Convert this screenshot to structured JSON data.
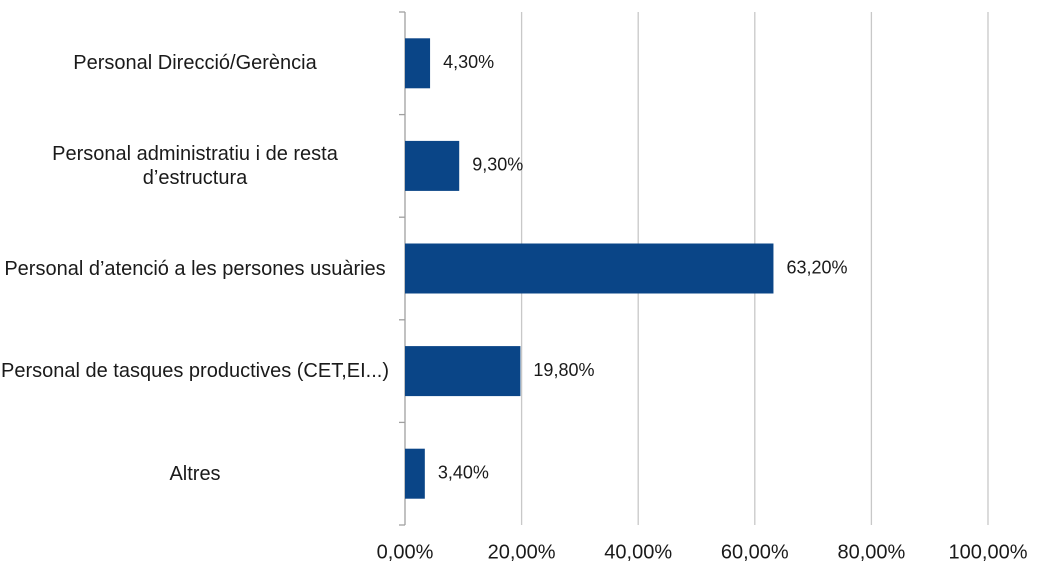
{
  "chart_data": {
    "type": "bar",
    "orientation": "horizontal",
    "categories": [
      "Personal Direcció/Gerència",
      "Personal administratiu i de resta d’estructura",
      "Personal d’atenció a les persones usuàries",
      "Personal de tasques productives (CET,EI...)",
      "Altres"
    ],
    "values": [
      4.3,
      9.3,
      63.2,
      19.8,
      3.4
    ],
    "value_labels": [
      "4,30%",
      "9,30%",
      "63,20%",
      "19,80%",
      "3,40%"
    ],
    "color": "#0a4587",
    "xlim": [
      0,
      100
    ],
    "xticks": [
      {
        "value": 0,
        "label": "0,00%"
      },
      {
        "value": 20,
        "label": "20,00%"
      },
      {
        "value": 40,
        "label": "40,00%"
      },
      {
        "value": 60,
        "label": "60,00%"
      },
      {
        "value": 80,
        "label": "80,00%"
      },
      {
        "value": 100,
        "label": "100,00%"
      }
    ],
    "grid": true
  }
}
